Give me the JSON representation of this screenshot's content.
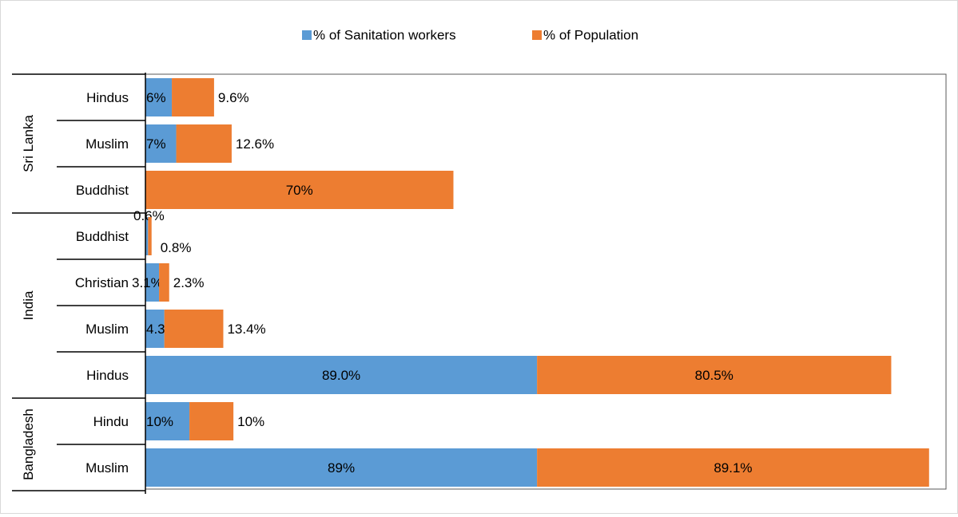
{
  "chart_data": {
    "type": "bar",
    "orientation": "horizontal",
    "stacked": true,
    "legend_position": "top-center",
    "grid": false,
    "series": [
      {
        "name": "% of Sanitation workers",
        "color": "#5b9bd5",
        "labels": [
          "6%",
          "7%",
          "",
          "0.6%",
          "3.1%",
          "4.3%",
          "89.0%",
          "10%",
          "89%"
        ],
        "values": [
          6,
          7,
          0,
          0.6,
          3.1,
          4.3,
          89.0,
          10,
          89
        ]
      },
      {
        "name": "% of Population",
        "color": "#ed7d31",
        "labels": [
          "9.6%",
          "12.6%",
          "70%",
          "0.8%",
          "2.3%",
          "13.4%",
          "80.5%",
          "10%",
          "89.1%"
        ],
        "values": [
          9.6,
          12.6,
          70,
          0.8,
          2.3,
          13.4,
          80.5,
          10,
          89.1
        ]
      }
    ],
    "groups": [
      {
        "name": "Sri Lanka",
        "categories": [
          "Hindus",
          "Muslim",
          "Buddhist"
        ]
      },
      {
        "name": "India",
        "categories": [
          "Buddhist",
          "Christian",
          "Muslim",
          "Hindus"
        ]
      },
      {
        "name": "Bangladesh",
        "categories": [
          "Hindu",
          "Muslim"
        ]
      }
    ],
    "xlim": [
      0,
      178
    ]
  }
}
